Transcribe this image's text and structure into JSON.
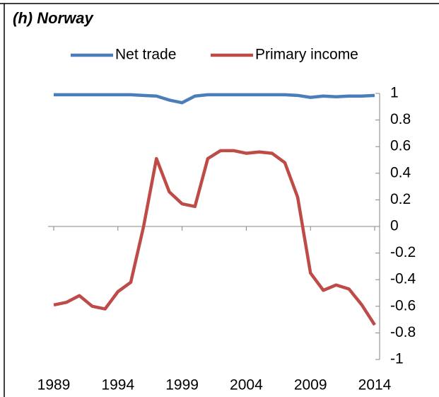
{
  "chart_data": {
    "type": "line",
    "title": "(h) Norway",
    "x": [
      1989,
      1990,
      1991,
      1992,
      1993,
      1994,
      1995,
      1996,
      1997,
      1998,
      1999,
      2000,
      2001,
      2002,
      2003,
      2004,
      2005,
      2006,
      2007,
      2008,
      2009,
      2010,
      2011,
      2012,
      2013,
      2014
    ],
    "series": [
      {
        "name": "Net trade",
        "color": "#4a7ebb",
        "values": [
          0.99,
          0.99,
          0.99,
          0.99,
          0.99,
          0.99,
          0.99,
          0.985,
          0.98,
          0.95,
          0.93,
          0.98,
          0.99,
          0.99,
          0.99,
          0.99,
          0.99,
          0.99,
          0.99,
          0.985,
          0.97,
          0.98,
          0.975,
          0.98,
          0.98,
          0.985
        ]
      },
      {
        "name": "Primary income",
        "color": "#be4b48",
        "values": [
          -0.59,
          -0.57,
          -0.52,
          -0.6,
          -0.62,
          -0.49,
          -0.42,
          0.0,
          0.51,
          0.26,
          0.17,
          0.15,
          0.51,
          0.57,
          0.57,
          0.55,
          0.56,
          0.55,
          0.48,
          0.22,
          -0.35,
          -0.48,
          -0.44,
          -0.47,
          -0.59,
          -0.74
        ]
      }
    ],
    "xlim": [
      1989,
      2014
    ],
    "xticks": [
      1989,
      1994,
      1999,
      2004,
      2009,
      2014
    ],
    "ylim": [
      -1,
      1
    ],
    "yticks": [
      -1,
      -0.8,
      -0.6,
      -0.4,
      -0.2,
      0,
      0.2,
      0.4,
      0.6,
      0.8,
      1
    ],
    "legend": "top"
  }
}
